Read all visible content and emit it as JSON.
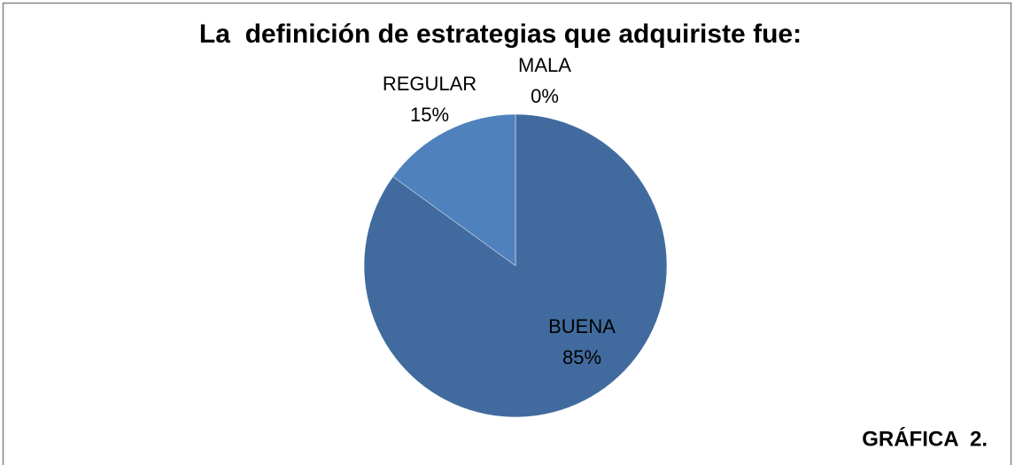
{
  "chart_data": {
    "type": "pie",
    "title": "La  definición de estrategias que adquiriste fue:",
    "categories": [
      "BUENA",
      "REGULAR",
      "MALA"
    ],
    "values": [
      85,
      15,
      0
    ],
    "value_labels": [
      "85%",
      "15%",
      "0%"
    ],
    "colors": [
      "#416b9e",
      "#4f81bd",
      "#9bbb59"
    ],
    "annotation": "GRÁFICA  2."
  }
}
